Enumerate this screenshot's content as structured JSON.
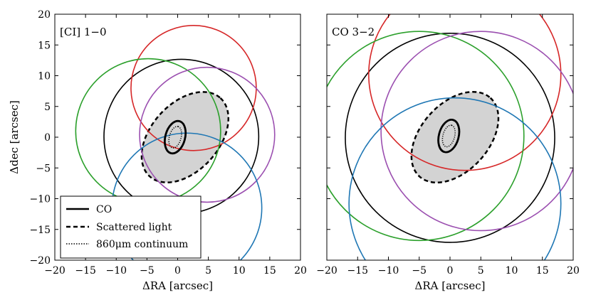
{
  "chart_data": [
    {
      "type": "scatter",
      "panel": "left",
      "annotation": "[CI] 1−0",
      "xlabel": "ΔRA [arcsec]",
      "ylabel": "Δdec [arcsec]",
      "xlim": [
        -20,
        20
      ],
      "ylim": [
        -20,
        20
      ],
      "x_ticks": [
        -20,
        -15,
        -10,
        -5,
        0,
        5,
        10,
        15,
        20
      ],
      "y_ticks": [
        -20,
        -15,
        -10,
        -5,
        0,
        5,
        10,
        15,
        20
      ],
      "x_tick_labels": [
        "−20",
        "−15",
        "−10",
        "−5",
        "0",
        "5",
        "10",
        "15",
        "20"
      ],
      "y_tick_labels": [
        "−20",
        "−15",
        "−10",
        "−5",
        "0",
        "5",
        "10",
        "15",
        "20"
      ],
      "grid": false,
      "beams": [
        {
          "color": "#000000",
          "center": [
            0.6,
            0.1
          ],
          "radius": 12.6
        },
        {
          "color": "#d62728",
          "center": [
            2.6,
            8.0
          ],
          "radius": 10.2
        },
        {
          "color": "#2ca02c",
          "center": [
            -4.8,
            1.0
          ],
          "radius": 11.8
        },
        {
          "color": "#9b4fb0",
          "center": [
            4.8,
            0.4
          ],
          "radius": 11.0
        },
        {
          "color": "#1f77b4",
          "center": [
            1.5,
            -11.5
          ],
          "radius": 12.2
        }
      ],
      "scattered_light_ellipse": {
        "center": [
          1.2,
          0.0
        ],
        "semi_major": 8.6,
        "semi_minor": 5.5,
        "angle_deg": 48,
        "fill": "#d3d3d3"
      },
      "co_ellipse": {
        "center": [
          -0.4,
          0.0
        ],
        "semi_major": 2.7,
        "semi_minor": 1.6,
        "angle_deg": 75
      },
      "continuum_ellipse": {
        "center": [
          -0.4,
          0.0
        ],
        "semi_major": 1.8,
        "semi_minor": 0.95,
        "angle_deg": 75
      },
      "legend": {
        "position": "lower-left",
        "entries": [
          {
            "label": "CO",
            "style": "solid"
          },
          {
            "label": "Scattered light",
            "style": "dashed"
          },
          {
            "label": "860μm continuum",
            "style": "dotted"
          }
        ]
      }
    },
    {
      "type": "scatter",
      "panel": "right",
      "annotation": "CO 3−2",
      "xlabel": "ΔRA [arcsec]",
      "ylabel": "",
      "xlim": [
        -20,
        20
      ],
      "ylim": [
        -20,
        20
      ],
      "x_ticks": [
        -20,
        -15,
        -10,
        -5,
        0,
        5,
        10,
        15,
        20
      ],
      "x_tick_labels": [
        "−20",
        "−15",
        "−10",
        "−5",
        "0",
        "5",
        "10",
        "15",
        "20"
      ],
      "grid": false,
      "beams": [
        {
          "color": "#000000",
          "center": [
            0.0,
            -0.1
          ],
          "radius": 17.0
        },
        {
          "color": "#d62728",
          "center": [
            2.4,
            10.2
          ],
          "radius": 15.6
        },
        {
          "color": "#2ca02c",
          "center": [
            -5.0,
            0.2
          ],
          "radius": 17.0
        },
        {
          "color": "#9b4fb0",
          "center": [
            5.0,
            1.0
          ],
          "radius": 16.2
        },
        {
          "color": "#1f77b4",
          "center": [
            0.8,
            -10.8
          ],
          "radius": 17.2
        }
      ],
      "scattered_light_ellipse": {
        "center": [
          0.8,
          0.0
        ],
        "semi_major": 8.6,
        "semi_minor": 5.5,
        "angle_deg": 48,
        "fill": "#d3d3d3"
      },
      "co_ellipse": {
        "center": [
          -0.2,
          0.2
        ],
        "semi_major": 2.7,
        "semi_minor": 1.6,
        "angle_deg": 75
      },
      "continuum_ellipse": {
        "center": [
          -0.2,
          0.2
        ],
        "semi_major": 1.8,
        "semi_minor": 0.95,
        "angle_deg": 75
      }
    }
  ]
}
